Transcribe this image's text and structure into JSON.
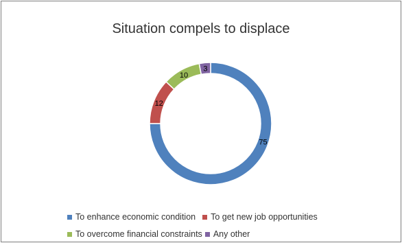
{
  "chart_data": {
    "type": "pie",
    "subtype": "doughnut",
    "title": "Situation compels to displace",
    "slices": [
      {
        "label": "To enhance economic condition",
        "value": 75,
        "color": "#4f81bd"
      },
      {
        "label": "To get new job opportunities",
        "value": 12,
        "color": "#c0504d"
      },
      {
        "label": "To overcome financial constraints",
        "value": 10,
        "color": "#9bbb59"
      },
      {
        "label": "Any other",
        "value": 3,
        "color": "#8064a2"
      }
    ],
    "legend_position": "bottom"
  }
}
